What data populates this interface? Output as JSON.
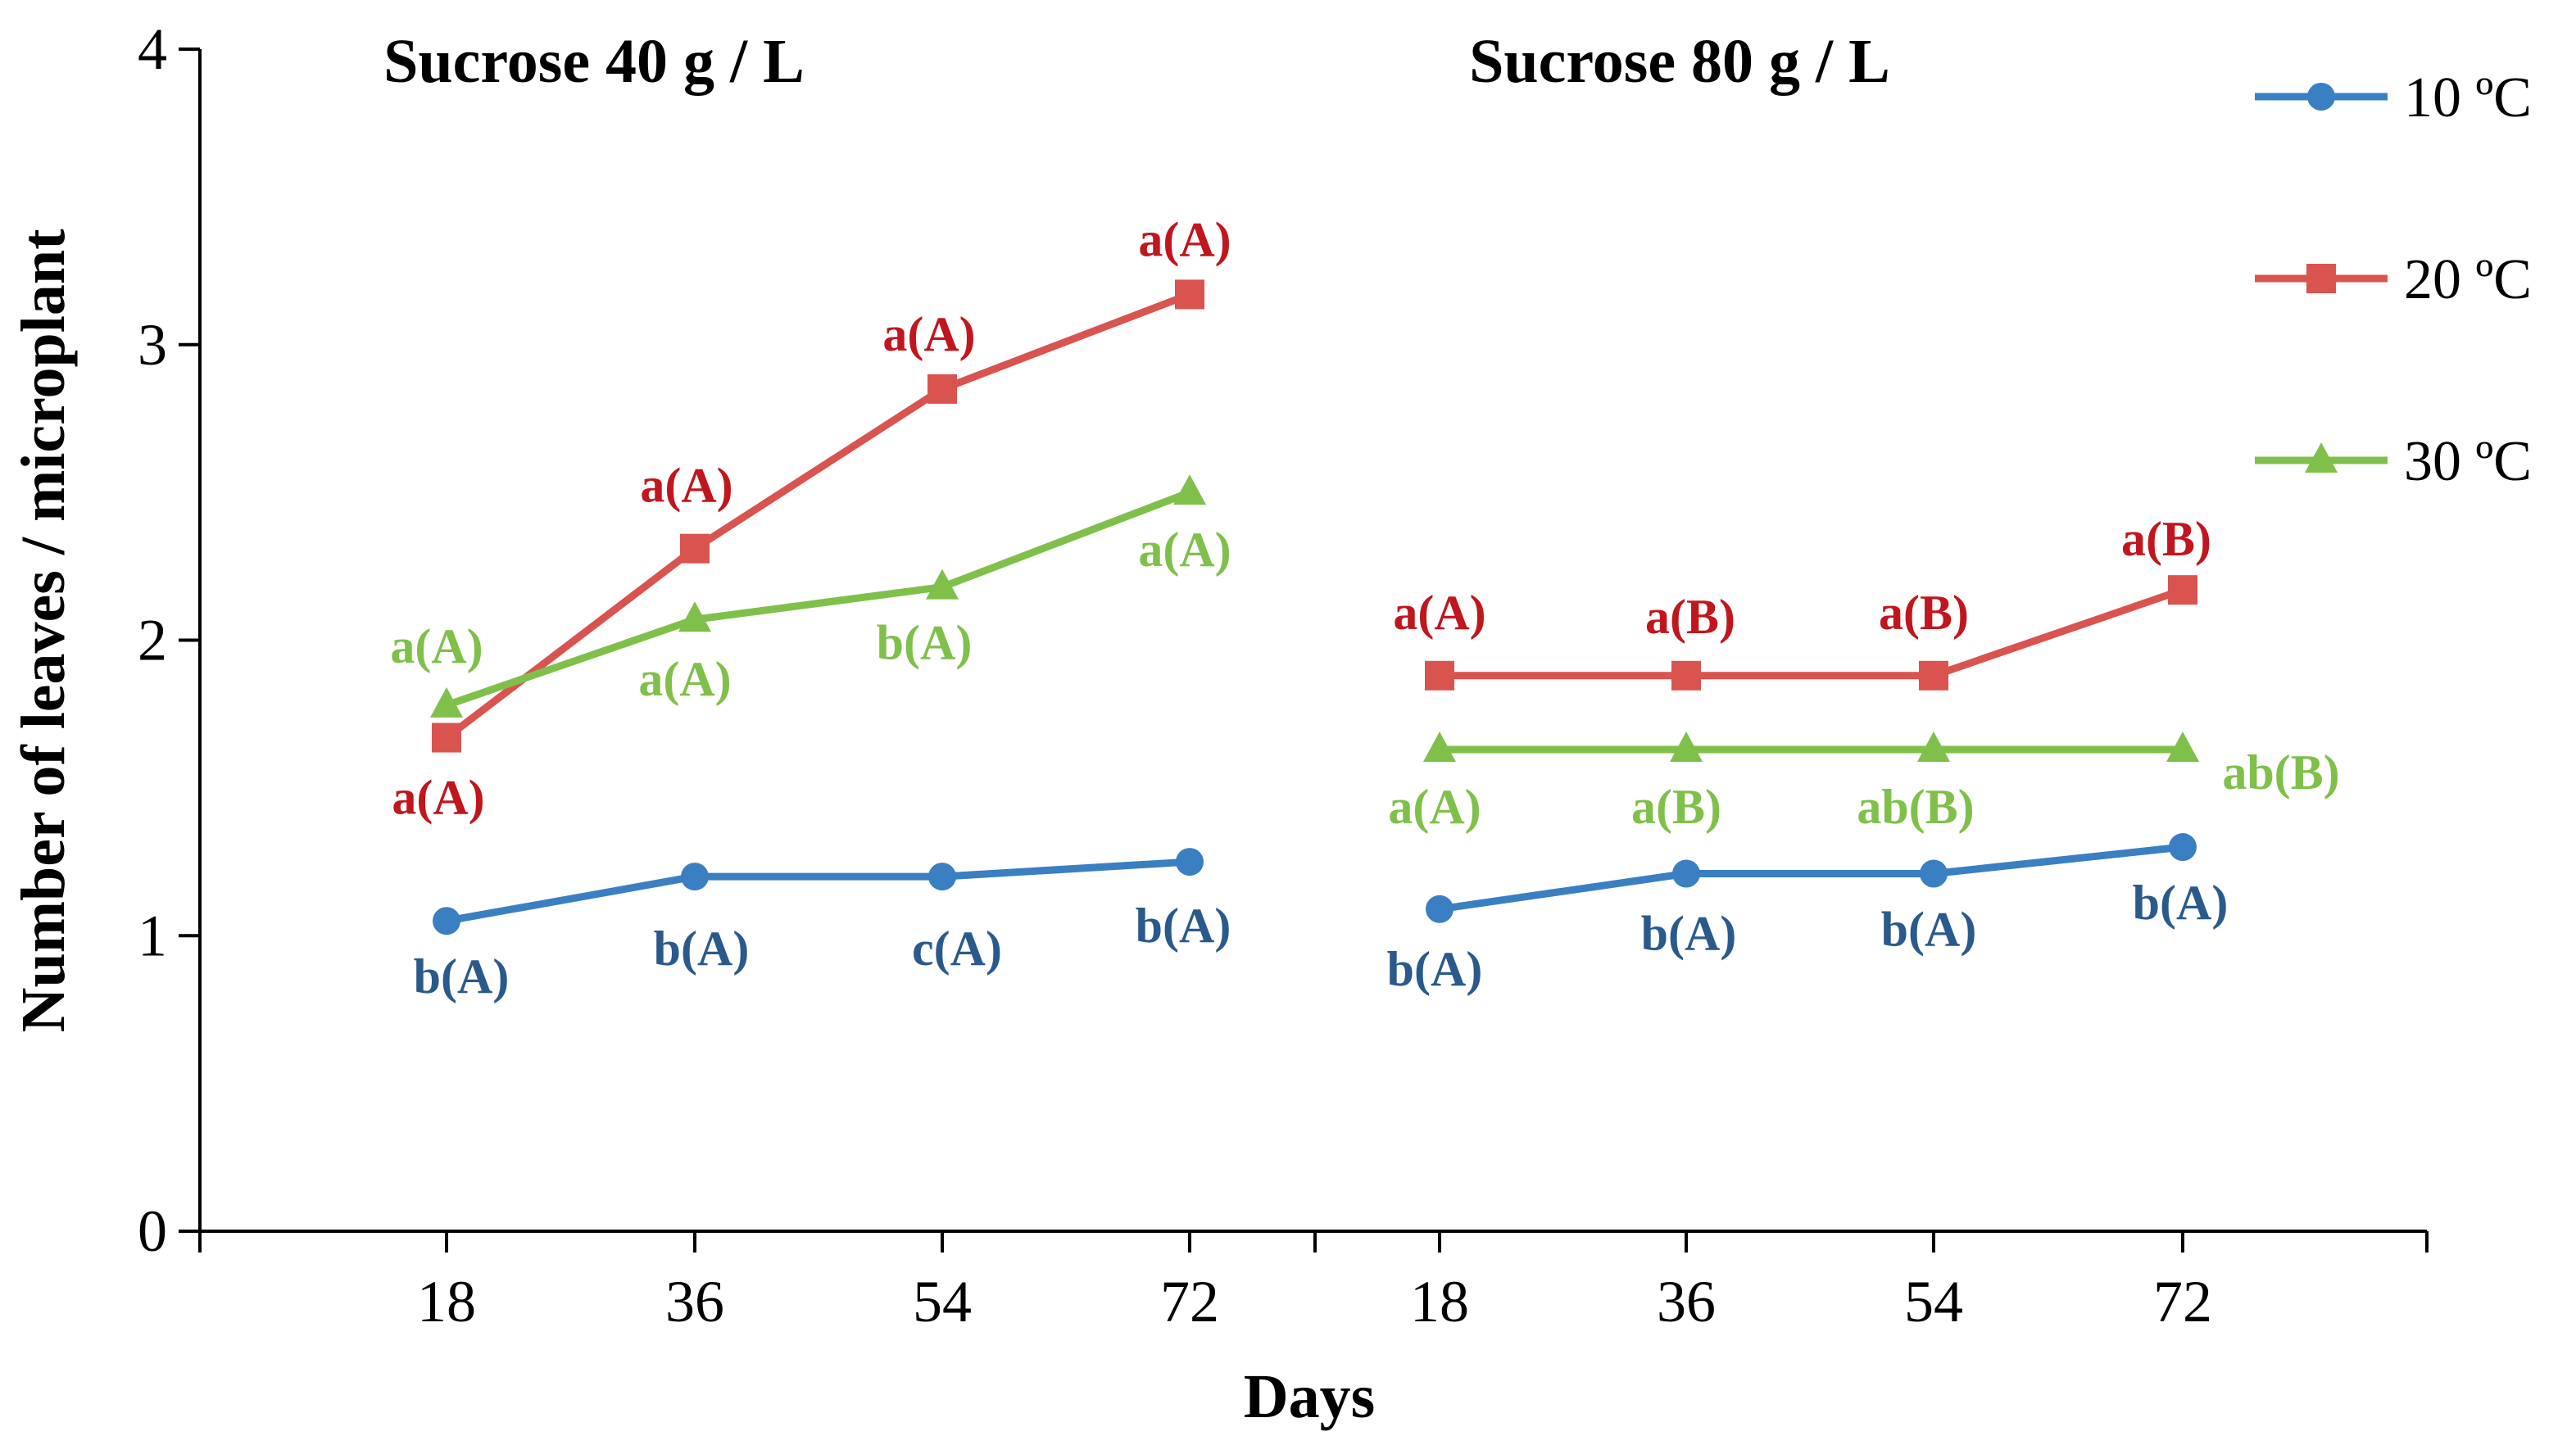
{
  "chart_data": {
    "type": "line",
    "title": "",
    "xlabel": "Days",
    "ylabel": "Number of leaves / microplant",
    "ylim": [
      0,
      4
    ],
    "yticks": [
      "0",
      "1",
      "2",
      "3",
      "4"
    ],
    "grid": false,
    "legend_position": "top-right",
    "x": [
      "18",
      "36",
      "54",
      "72"
    ],
    "series_styles": [
      {
        "name": "10 ºC",
        "color": "#3a7fc1",
        "label_color": "#2a5a8c",
        "marker": "circle"
      },
      {
        "name": "20 ºC",
        "color": "#d9534f",
        "label_color": "#c0161e",
        "marker": "square"
      },
      {
        "name": "30 ºC",
        "color": "#7fc04a",
        "label_color": "#7fc04a",
        "marker": "triangle"
      }
    ],
    "panels": [
      {
        "title": "Sucrose 40 g / L",
        "series": [
          {
            "name": "10 ºC",
            "values": [
              1.05,
              1.2,
              1.2,
              1.25
            ],
            "labels": [
              "b(A)",
              "b(A)",
              "c(A)",
              "b(A)"
            ]
          },
          {
            "name": "20 ºC",
            "values": [
              1.67,
              2.31,
              2.85,
              3.17
            ],
            "labels": [
              "a(A)",
              "a(A)",
              "a(A)",
              "a(A)"
            ]
          },
          {
            "name": "30 ºC",
            "values": [
              1.78,
              2.07,
              2.18,
              2.5
            ],
            "labels": [
              "a(A)",
              "a(A)",
              "b(A)",
              "a(A)"
            ]
          }
        ]
      },
      {
        "title": "Sucrose 80 g / L",
        "series": [
          {
            "name": "10 ºC",
            "values": [
              1.09,
              1.21,
              1.21,
              1.3
            ],
            "labels": [
              "b(A)",
              "b(A)",
              "b(A)",
              "b(A)"
            ]
          },
          {
            "name": "20 ºC",
            "values": [
              1.88,
              1.88,
              1.88,
              2.17
            ],
            "labels": [
              "a(A)",
              "a(B)",
              "a(B)",
              "a(B)"
            ]
          },
          {
            "name": "30 ºC",
            "values": [
              1.63,
              1.63,
              1.63,
              1.63
            ],
            "labels": [
              "a(A)",
              "a(B)",
              "ab(B)",
              "ab(B)"
            ]
          }
        ]
      }
    ]
  }
}
